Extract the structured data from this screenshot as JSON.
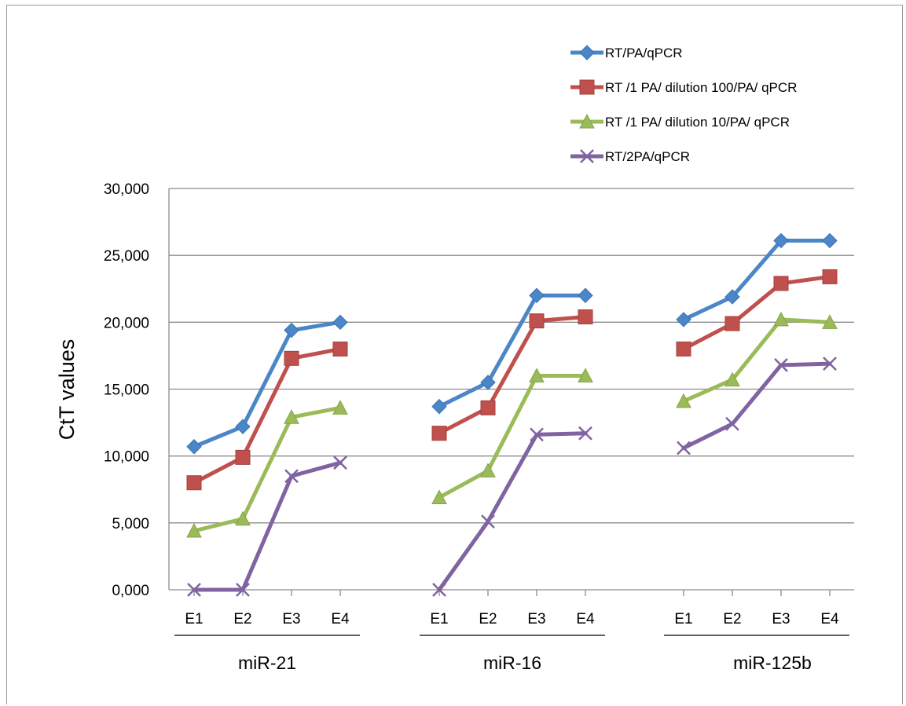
{
  "chart_data": {
    "type": "line",
    "title": "",
    "ylabel": "CtT values",
    "xlabel": "",
    "ylim": [
      0,
      30000
    ],
    "yticks": [
      0,
      5000,
      10000,
      15000,
      20000,
      25000,
      30000
    ],
    "ytick_labels": [
      "0,000",
      "5,000",
      "10,000",
      "15,000",
      "20,000",
      "25,000",
      "30,000"
    ],
    "grid": "horizontal",
    "legend": "top-right",
    "groups": [
      {
        "label": "miR-21",
        "categories": [
          "E1",
          "E2",
          "E3",
          "E4"
        ]
      },
      {
        "label": "miR-16",
        "categories": [
          "E1",
          "E2",
          "E3",
          "E4"
        ]
      },
      {
        "label": "miR-125b",
        "categories": [
          "E1",
          "E2",
          "E3",
          "E4"
        ]
      }
    ],
    "series": [
      {
        "name": "RT/PA/qPCR",
        "color": "#4A86C8",
        "marker": "diamond",
        "values": [
          [
            10700,
            12200,
            19400,
            20000
          ],
          [
            13700,
            15500,
            22000,
            22000
          ],
          [
            20200,
            21900,
            26100,
            26100
          ]
        ]
      },
      {
        "name": "RT /1 PA/ dilution 100/PA/ qPCR",
        "color": "#C0504D",
        "marker": "square",
        "values": [
          [
            8000,
            9900,
            17300,
            18000
          ],
          [
            11700,
            13600,
            20100,
            20400
          ],
          [
            18000,
            19900,
            22900,
            23400
          ]
        ]
      },
      {
        "name": "RT /1 PA/ dilution 10/PA/ qPCR",
        "color": "#9BBB59",
        "marker": "triangle",
        "values": [
          [
            4400,
            5300,
            12900,
            13600
          ],
          [
            6900,
            8900,
            16000,
            16000
          ],
          [
            14100,
            15700,
            20200,
            20000
          ]
        ]
      },
      {
        "name": "RT/2PA/qPCR",
        "color": "#8064A2",
        "marker": "x",
        "values": [
          [
            0,
            0,
            8500,
            9500
          ],
          [
            0,
            5100,
            11600,
            11700
          ],
          [
            10600,
            12400,
            16800,
            16900
          ]
        ]
      }
    ]
  }
}
